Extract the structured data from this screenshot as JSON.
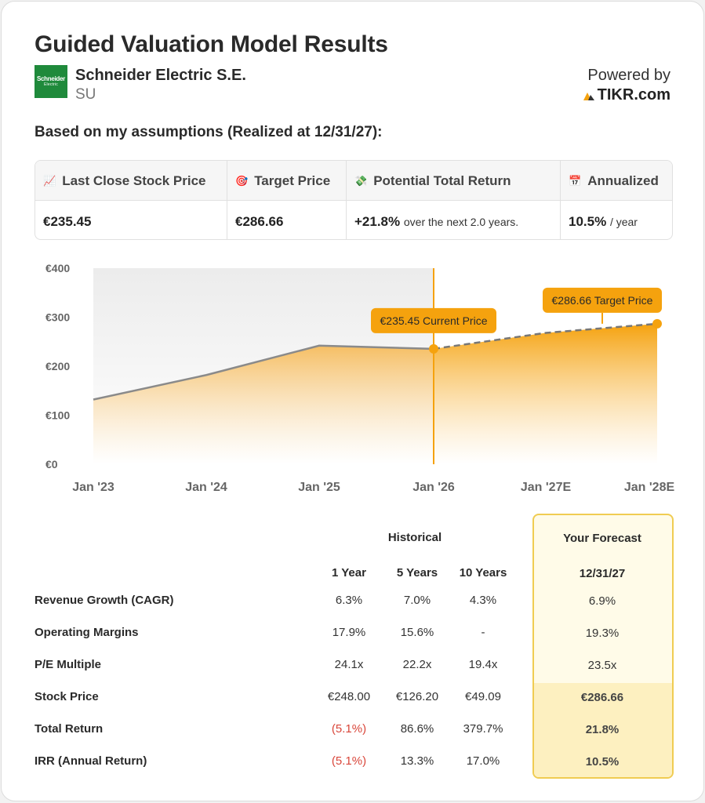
{
  "header": {
    "title": "Guided Valuation Model Results",
    "logo_line1": "Schneider",
    "logo_line2": "Electric",
    "company": "Schneider Electric S.E.",
    "ticker": "SU",
    "powered_by": "Powered by",
    "brand": "TIKR.com"
  },
  "assumptions_label": "Based on my assumptions (Realized at 12/31/27):",
  "summary": {
    "last_close_label": "Last Close Stock Price",
    "last_close_value": "€235.45",
    "target_label": "Target Price",
    "target_value": "€286.66",
    "potential_label": "Potential Total Return",
    "potential_value": "+21.8%",
    "potential_sub": "over the next 2.0 years.",
    "annualized_label": "Annualized",
    "annualized_value": "10.5%",
    "annualized_sub": "/ year"
  },
  "chart_data": {
    "type": "area",
    "x": [
      "Jan '23",
      "Jan '24",
      "Jan '25",
      "Jan '26",
      "Jan '27E",
      "Jan '28E"
    ],
    "yticks": [
      "€0",
      "€100",
      "€200",
      "€300",
      "€400"
    ],
    "ylim": [
      0,
      400
    ],
    "historical": {
      "points": [
        [
          0,
          132
        ],
        [
          1,
          182
        ],
        [
          2,
          242
        ],
        [
          3,
          235.45
        ]
      ]
    },
    "forecast": {
      "points": [
        [
          3,
          235.45
        ],
        [
          4,
          268
        ],
        [
          5,
          286.66
        ]
      ]
    },
    "current_label": "€235.45 Current Price",
    "target_label": "€286.66 Target Price",
    "colors": {
      "accent": "#f5a20e",
      "line": "#8a8a8a",
      "shade": "#efefef"
    }
  },
  "table": {
    "historical_label": "Historical",
    "forecast_label": "Your Forecast",
    "columns": [
      "1 Year",
      "5 Years",
      "10 Years"
    ],
    "forecast_date": "12/31/27",
    "rows": [
      {
        "label": "Revenue Growth (CAGR)",
        "values": [
          "6.3%",
          "7.0%",
          "4.3%"
        ],
        "forecast": "6.9%"
      },
      {
        "label": "Operating Margins",
        "values": [
          "17.9%",
          "15.6%",
          "-"
        ],
        "forecast": "19.3%"
      },
      {
        "label": "P/E Multiple",
        "values": [
          "24.1x",
          "22.2x",
          "19.4x"
        ],
        "forecast": "23.5x"
      },
      {
        "label": "Stock Price",
        "values": [
          "€248.00",
          "€126.20",
          "€49.09"
        ],
        "forecast": "€286.66"
      },
      {
        "label": "Total Return",
        "values": [
          "(5.1%)",
          "86.6%",
          "379.7%"
        ],
        "forecast": "21.8%"
      },
      {
        "label": "IRR (Annual Return)",
        "values": [
          "(5.1%)",
          "13.3%",
          "17.0%"
        ],
        "forecast": "10.5%"
      }
    ]
  }
}
